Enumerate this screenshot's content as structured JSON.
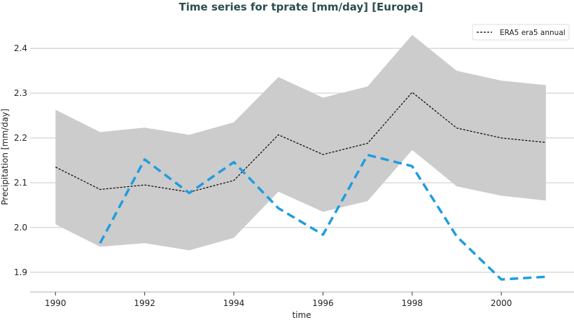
{
  "chart_data": {
    "type": "line",
    "title": "Time series for tprate [mm/day] [Europe]",
    "xlabel": "time",
    "ylabel": "Precipitation [mm/day]",
    "xlim": [
      1989.43,
      2001.63
    ],
    "ylim": [
      1.856,
      2.458
    ],
    "xticks": [
      "1990",
      "1992",
      "1994",
      "1996",
      "1998",
      "2000"
    ],
    "yticks": [
      "1.9",
      "2.0",
      "2.1",
      "2.2",
      "2.3",
      "2.4"
    ],
    "grid": "horizontal",
    "legend_position": "top-right",
    "x": [
      1990,
      1991,
      1992,
      1993,
      1994,
      1995,
      1996,
      1997,
      1998,
      1999,
      2000,
      2001
    ],
    "band": {
      "color": "#cccccc",
      "upper": [
        2.263,
        2.213,
        2.223,
        2.207,
        2.235,
        2.336,
        2.29,
        2.315,
        2.43,
        2.35,
        2.328,
        2.318
      ],
      "lower": [
        2.007,
        1.957,
        1.965,
        1.949,
        1.977,
        2.08,
        2.035,
        2.059,
        2.173,
        2.092,
        2.071,
        2.06
      ]
    },
    "series": [
      {
        "name": "ERA5 era5 annual",
        "color": "#000000",
        "style": "dashed-thin",
        "x": [
          1990,
          1991,
          1992,
          1993,
          1994,
          1995,
          1996,
          1997,
          1998,
          1999,
          2000,
          2001
        ],
        "values": [
          2.135,
          2.085,
          2.095,
          2.079,
          2.105,
          2.207,
          2.163,
          2.188,
          2.302,
          2.222,
          2.2,
          2.19
        ]
      },
      {
        "color": "#1f9de0",
        "style": "dashed-thick",
        "x": [
          1991,
          1992,
          1993,
          1994,
          1995,
          1996,
          1997,
          1998,
          1999,
          2000,
          2001
        ],
        "values": [
          1.965,
          2.152,
          2.077,
          2.146,
          2.043,
          1.984,
          2.162,
          2.137,
          1.98,
          1.884,
          1.89
        ]
      }
    ]
  }
}
